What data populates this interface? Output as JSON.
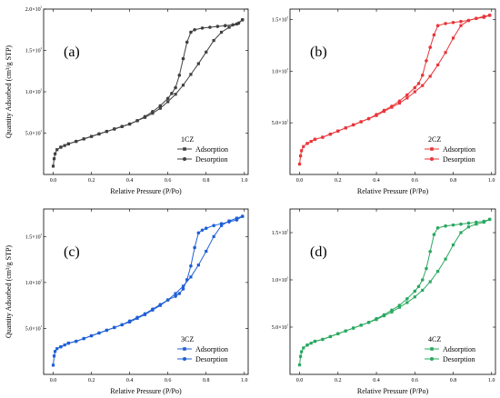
{
  "chart_data": [
    {
      "type": "line",
      "panel_label": "(a)",
      "sample_label": "1CZ",
      "xlabel": "Relative Pressure (P/Po)",
      "ylabel": "Quantity Adsorbed (cm³/g STP)",
      "xlim": [
        -0.05,
        1.02
      ],
      "ylim": [
        0,
        200
      ],
      "x_ticks": [
        0.0,
        0.2,
        0.4,
        0.6,
        0.8,
        1.0
      ],
      "x_tick_labels": [
        "0.0",
        "0.2",
        "0.4",
        "0.6",
        "0.8",
        "1.0"
      ],
      "y_ticks": [
        50,
        100,
        150,
        200
      ],
      "y_tick_labels": [
        "5.0×10¹",
        "1.0×10²",
        "1.5×10²",
        "2.0×10²"
      ],
      "legend_position": "bottom-right",
      "color": "#404040",
      "series": [
        {
          "name": "Adsorption",
          "marker": "square",
          "x": [
            0.0,
            0.005,
            0.01,
            0.02,
            0.04,
            0.06,
            0.08,
            0.12,
            0.16,
            0.2,
            0.24,
            0.28,
            0.32,
            0.36,
            0.4,
            0.44,
            0.48,
            0.52,
            0.56,
            0.6,
            0.64,
            0.68,
            0.72,
            0.76,
            0.8,
            0.84,
            0.88,
            0.92,
            0.96,
            0.99
          ],
          "y": [
            10,
            19,
            25,
            30,
            33,
            35,
            37,
            40,
            43,
            46,
            49,
            52,
            55,
            58,
            61,
            65,
            69,
            74,
            80,
            88,
            97,
            108,
            121,
            134,
            148,
            162,
            172,
            178,
            182,
            187
          ]
        },
        {
          "name": "Desorption",
          "marker": "circle",
          "x": [
            0.99,
            0.97,
            0.94,
            0.9,
            0.86,
            0.82,
            0.78,
            0.74,
            0.72,
            0.7,
            0.68,
            0.66,
            0.64,
            0.62,
            0.6,
            0.56,
            0.52,
            0.48,
            0.44,
            0.4,
            0.36,
            0.32,
            0.28,
            0.24,
            0.2,
            0.16,
            0.12,
            0.08,
            0.04
          ],
          "y": [
            187,
            183,
            181,
            180,
            179,
            178,
            177,
            175,
            172,
            160,
            140,
            120,
            105,
            98,
            92,
            83,
            76,
            70,
            65,
            61,
            58,
            55,
            52,
            49,
            46,
            43,
            40,
            37,
            33
          ]
        }
      ]
    },
    {
      "type": "line",
      "panel_label": "(b)",
      "sample_label": "2CZ",
      "xlabel": "Relative Pressure (P/Po)",
      "ylabel": "",
      "xlim": [
        -0.05,
        1.02
      ],
      "ylim": [
        0,
        160
      ],
      "x_ticks": [
        0.0,
        0.2,
        0.4,
        0.6,
        0.8,
        1.0
      ],
      "x_tick_labels": [
        "0.0",
        "0.2",
        "0.4",
        "0.6",
        "0.8",
        "1.0"
      ],
      "y_ticks": [
        50,
        100,
        150
      ],
      "y_tick_labels": [
        "5.0×10¹",
        "1.0×10²",
        "1.5×10²"
      ],
      "legend_position": "bottom-right",
      "color": "#e8363a",
      "series": [
        {
          "name": "Adsorption",
          "marker": "square",
          "x": [
            0.0,
            0.005,
            0.01,
            0.02,
            0.04,
            0.06,
            0.08,
            0.12,
            0.16,
            0.2,
            0.24,
            0.28,
            0.32,
            0.36,
            0.4,
            0.44,
            0.48,
            0.52,
            0.56,
            0.6,
            0.64,
            0.68,
            0.72,
            0.76,
            0.8,
            0.84,
            0.88,
            0.92,
            0.96,
            0.99
          ],
          "y": [
            10,
            18,
            23,
            27,
            30,
            32,
            34,
            36,
            39,
            42,
            45,
            48,
            51,
            54,
            57,
            61,
            65,
            69,
            74,
            80,
            86,
            95,
            106,
            118,
            132,
            144,
            149,
            151,
            153,
            154
          ]
        },
        {
          "name": "Desorption",
          "marker": "circle",
          "x": [
            0.99,
            0.96,
            0.92,
            0.88,
            0.84,
            0.8,
            0.76,
            0.72,
            0.7,
            0.68,
            0.66,
            0.64,
            0.62,
            0.6,
            0.56,
            0.52,
            0.48,
            0.44,
            0.4,
            0.36,
            0.32,
            0.28,
            0.24,
            0.2,
            0.16,
            0.12,
            0.08,
            0.04
          ],
          "y": [
            154,
            152,
            151,
            149,
            148,
            147,
            146,
            144,
            135,
            123,
            110,
            96,
            88,
            84,
            77,
            71,
            66,
            62,
            58,
            54,
            51,
            48,
            45,
            42,
            39,
            36,
            34,
            30
          ]
        }
      ]
    },
    {
      "type": "line",
      "panel_label": "(c)",
      "sample_label": "3CZ",
      "xlabel": "Relative Pressure (P/Po)",
      "ylabel": "Quantity Adsorbed (cm³/g STP)",
      "xlim": [
        -0.05,
        1.02
      ],
      "ylim": [
        0,
        180
      ],
      "x_ticks": [
        0.0,
        0.2,
        0.4,
        0.6,
        0.8,
        1.0
      ],
      "x_tick_labels": [
        "0.0",
        "0.2",
        "0.4",
        "0.6",
        "0.8",
        "1.0"
      ],
      "y_ticks": [
        50,
        100,
        150
      ],
      "y_tick_labels": [
        "5.0×10¹",
        "1.0×10²",
        "1.5×10²"
      ],
      "legend_position": "bottom-right",
      "color": "#1f5fd6",
      "series": [
        {
          "name": "Adsorption",
          "marker": "square",
          "x": [
            0.0,
            0.005,
            0.01,
            0.02,
            0.04,
            0.06,
            0.08,
            0.12,
            0.16,
            0.2,
            0.24,
            0.28,
            0.32,
            0.36,
            0.4,
            0.44,
            0.48,
            0.52,
            0.56,
            0.6,
            0.64,
            0.68,
            0.72,
            0.76,
            0.8,
            0.84,
            0.88,
            0.92,
            0.96,
            0.99
          ],
          "y": [
            10,
            20,
            25,
            28,
            30,
            32,
            34,
            36,
            39,
            42,
            45,
            48,
            51,
            54,
            57,
            61,
            65,
            70,
            75,
            81,
            88,
            96,
            106,
            119,
            134,
            150,
            162,
            167,
            170,
            172
          ]
        },
        {
          "name": "Desorption",
          "marker": "circle",
          "x": [
            0.99,
            0.96,
            0.92,
            0.88,
            0.84,
            0.8,
            0.78,
            0.76,
            0.74,
            0.72,
            0.7,
            0.68,
            0.66,
            0.64,
            0.6,
            0.56,
            0.52,
            0.48,
            0.44,
            0.4,
            0.36,
            0.32,
            0.28,
            0.24,
            0.2,
            0.16,
            0.12,
            0.08,
            0.04
          ],
          "y": [
            172,
            168,
            166,
            164,
            162,
            159,
            157,
            154,
            138,
            118,
            103,
            93,
            88,
            85,
            81,
            76,
            71,
            66,
            62,
            58,
            54,
            51,
            48,
            45,
            42,
            39,
            36,
            34,
            30
          ]
        }
      ]
    },
    {
      "type": "line",
      "panel_label": "(d)",
      "sample_label": "4CZ",
      "xlabel": "Relative Pressure (P/Po)",
      "ylabel": "",
      "xlim": [
        -0.05,
        1.02
      ],
      "ylim": [
        0,
        175
      ],
      "x_ticks": [
        0.0,
        0.2,
        0.4,
        0.6,
        0.8,
        1.0
      ],
      "x_tick_labels": [
        "0.0",
        "0.2",
        "0.4",
        "0.6",
        "0.8",
        "1.0"
      ],
      "y_ticks": [
        50,
        100,
        150
      ],
      "y_tick_labels": [
        "5.0×10¹",
        "1.0×10²",
        "1.5×10²"
      ],
      "legend_position": "bottom-right",
      "color": "#2aa860",
      "series": [
        {
          "name": "Adsorption",
          "marker": "square",
          "x": [
            0.0,
            0.005,
            0.01,
            0.02,
            0.04,
            0.06,
            0.08,
            0.12,
            0.16,
            0.2,
            0.24,
            0.28,
            0.32,
            0.36,
            0.4,
            0.44,
            0.48,
            0.52,
            0.56,
            0.6,
            0.64,
            0.68,
            0.72,
            0.76,
            0.8,
            0.84,
            0.88,
            0.92,
            0.96,
            0.99
          ],
          "y": [
            10,
            19,
            24,
            28,
            31,
            33,
            35,
            37,
            40,
            43,
            46,
            49,
            52,
            55,
            58,
            62,
            66,
            71,
            76,
            82,
            89,
            98,
            109,
            122,
            137,
            150,
            156,
            159,
            161,
            164
          ]
        },
        {
          "name": "Desorption",
          "marker": "circle",
          "x": [
            0.99,
            0.96,
            0.92,
            0.88,
            0.84,
            0.8,
            0.76,
            0.72,
            0.7,
            0.68,
            0.66,
            0.64,
            0.62,
            0.6,
            0.56,
            0.52,
            0.48,
            0.44,
            0.4,
            0.36,
            0.32,
            0.28,
            0.24,
            0.2,
            0.16,
            0.12,
            0.08,
            0.04
          ],
          "y": [
            164,
            162,
            161,
            160,
            159,
            158,
            157,
            155,
            148,
            130,
            112,
            100,
            93,
            88,
            80,
            73,
            68,
            63,
            59,
            55,
            52,
            49,
            46,
            43,
            40,
            37,
            35,
            31
          ]
        }
      ]
    }
  ]
}
